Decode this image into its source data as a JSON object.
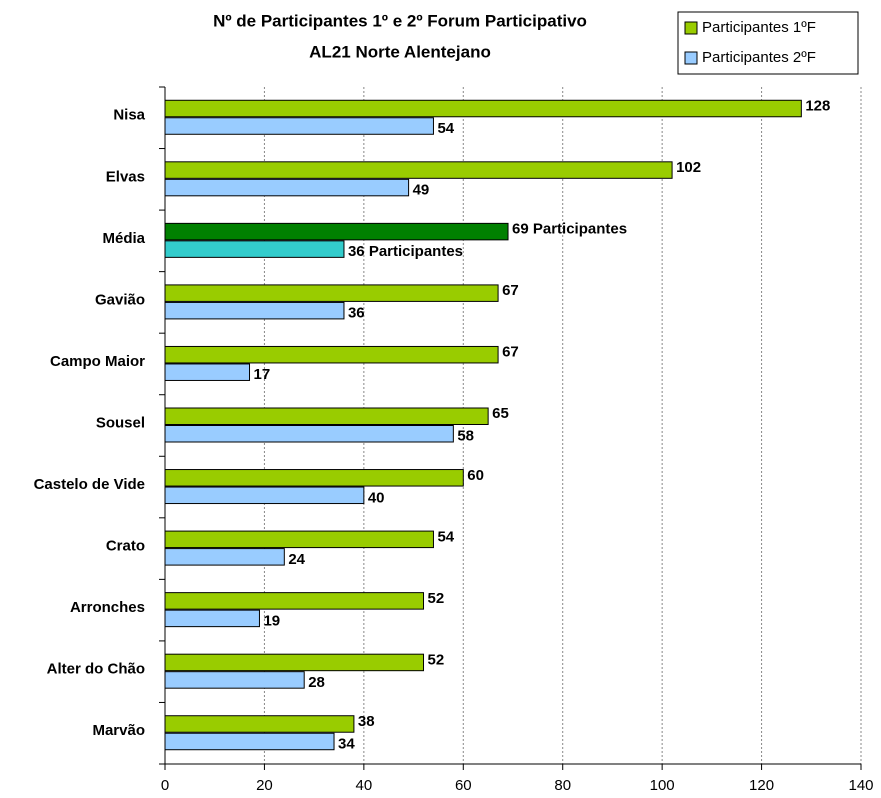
{
  "chart_data": {
    "type": "hbar",
    "title": [
      "Nº de Participantes 1º e 2º Forum Participativo",
      "AL21 Norte Alentejano"
    ],
    "categories": [
      "Nisa",
      "Elvas",
      "Média",
      "Gavião",
      "Campo Maior",
      "Sousel",
      "Castelo de Vide",
      "Crato",
      "Arronches",
      "Alter do Chão",
      "Marvão"
    ],
    "series": [
      {
        "name": "Participantes 1ºF",
        "color": "#99cc00",
        "colors": [
          "#99cc00",
          "#99cc00",
          "#008000",
          "#99cc00",
          "#99cc00",
          "#99cc00",
          "#99cc00",
          "#99cc00",
          "#99cc00",
          "#99cc00",
          "#99cc00"
        ],
        "values": [
          128,
          102,
          69,
          67,
          67,
          65,
          60,
          54,
          52,
          52,
          38
        ],
        "value_labels": [
          "128",
          "102",
          "69 Participantes",
          "67",
          "67",
          "65",
          "60",
          "54",
          "52",
          "52",
          "38"
        ]
      },
      {
        "name": "Participantes 2ºF",
        "color": "#99ccff",
        "colors": [
          "#99ccff",
          "#99ccff",
          "#33cccc",
          "#99ccff",
          "#99ccff",
          "#99ccff",
          "#99ccff",
          "#99ccff",
          "#99ccff",
          "#99ccff",
          "#99ccff"
        ],
        "values": [
          54,
          49,
          36,
          36,
          17,
          58,
          40,
          24,
          19,
          28,
          34
        ],
        "value_labels": [
          "54",
          "49",
          "36 Participantes",
          "36",
          "17",
          "58",
          "40",
          "24",
          "19",
          "28",
          "34"
        ]
      }
    ],
    "xlim": [
      0,
      140
    ],
    "xticks": [
      0,
      20,
      40,
      60,
      80,
      100,
      120,
      140
    ],
    "grid": true,
    "legend": "top-right"
  }
}
